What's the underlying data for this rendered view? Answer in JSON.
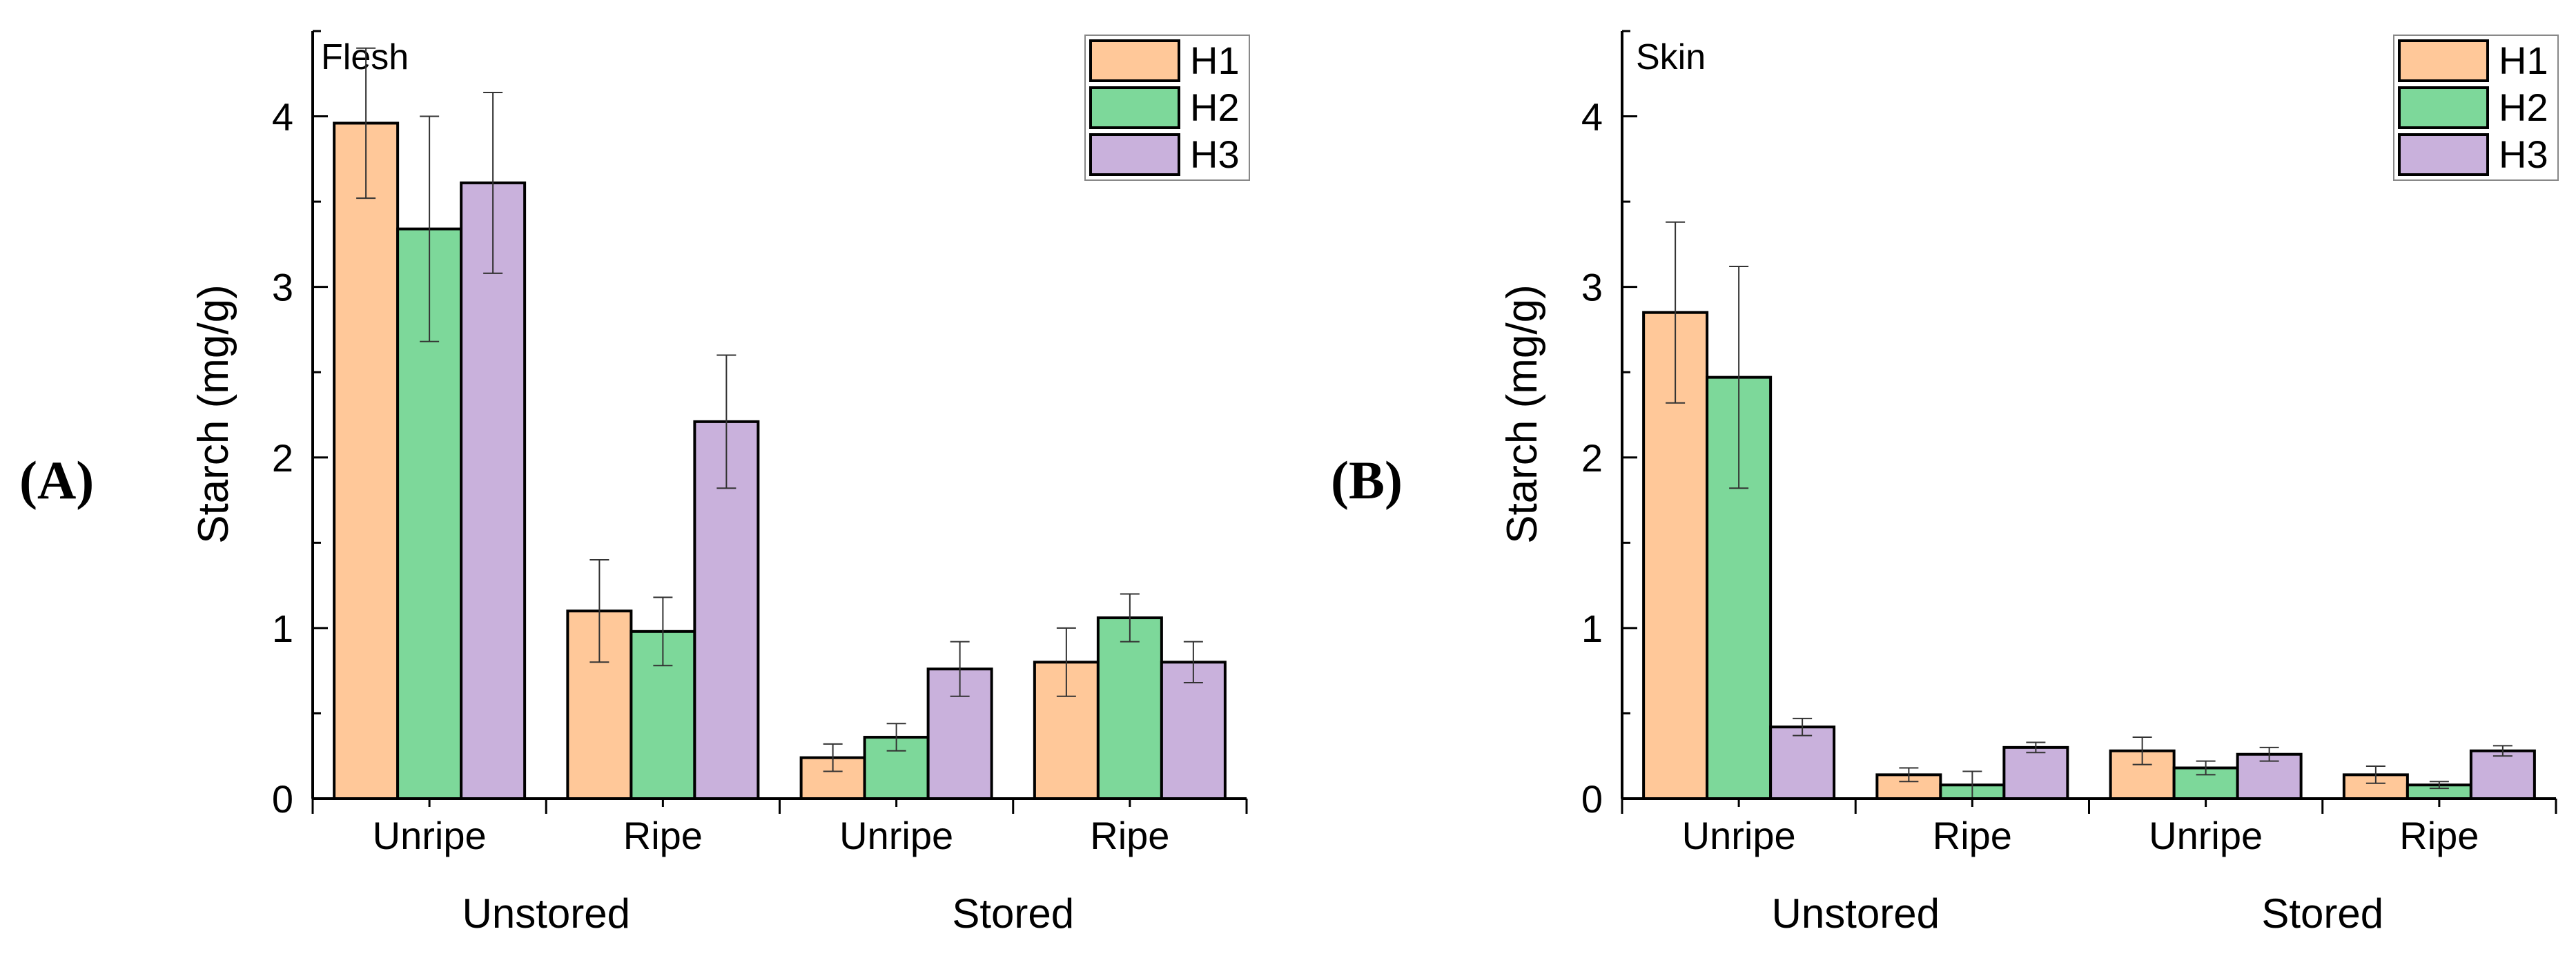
{
  "chart_data": [
    {
      "type": "bar",
      "panel_label": "(A)",
      "title": "Flesh",
      "xlabel": "",
      "ylabel": "Starch (mg/g)",
      "ylim": [
        0,
        4.5
      ],
      "yticks": [
        0,
        1,
        2,
        3,
        4
      ],
      "groups": [
        {
          "name": "Unstored",
          "categories": [
            "Unripe",
            "Ripe"
          ]
        },
        {
          "name": "Stored",
          "categories": [
            "Unripe",
            "Ripe"
          ]
        }
      ],
      "categories": [
        "Unripe",
        "Ripe",
        "Unripe",
        "Ripe"
      ],
      "series": [
        {
          "name": "H1",
          "values": [
            3.96,
            1.1,
            0.24,
            0.8
          ],
          "errors": [
            0.44,
            0.3,
            0.08,
            0.2
          ]
        },
        {
          "name": "H2",
          "values": [
            3.34,
            0.98,
            0.36,
            1.06
          ],
          "errors": [
            0.66,
            0.2,
            0.08,
            0.14
          ]
        },
        {
          "name": "H3",
          "values": [
            3.61,
            2.21,
            0.76,
            0.8
          ],
          "errors": [
            0.53,
            0.39,
            0.16,
            0.12
          ]
        }
      ],
      "legend": "top-right"
    },
    {
      "type": "bar",
      "panel_label": "(B)",
      "title": "Skin",
      "xlabel": "",
      "ylabel": "Starch (mg/g)",
      "ylim": [
        0,
        4.5
      ],
      "yticks": [
        0,
        1,
        2,
        3,
        4
      ],
      "groups": [
        {
          "name": "Unstored",
          "categories": [
            "Unripe",
            "Ripe"
          ]
        },
        {
          "name": "Stored",
          "categories": [
            "Unripe",
            "Ripe"
          ]
        }
      ],
      "categories": [
        "Unripe",
        "Ripe",
        "Unripe",
        "Ripe"
      ],
      "series": [
        {
          "name": "H1",
          "values": [
            2.85,
            0.14,
            0.28,
            0.14
          ],
          "errors": [
            0.53,
            0.04,
            0.08,
            0.05
          ]
        },
        {
          "name": "H2",
          "values": [
            2.47,
            0.08,
            0.18,
            0.08
          ],
          "errors": [
            0.65,
            0.08,
            0.04,
            0.02
          ]
        },
        {
          "name": "H3",
          "values": [
            0.42,
            0.3,
            0.26,
            0.28
          ],
          "errors": [
            0.05,
            0.03,
            0.04,
            0.03
          ]
        }
      ],
      "legend": "top-right"
    }
  ],
  "colors": {
    "H1": "#ffc899",
    "H2": "#7dd89a",
    "H3": "#c9b1dc",
    "bar_outline": "#000000",
    "error_bar": "#333333"
  }
}
